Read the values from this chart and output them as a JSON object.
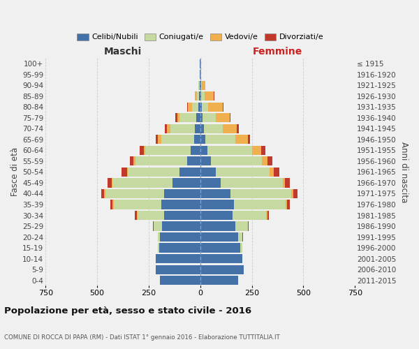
{
  "age_groups": [
    "0-4",
    "5-9",
    "10-14",
    "15-19",
    "20-24",
    "25-29",
    "30-34",
    "35-39",
    "40-44",
    "45-49",
    "50-54",
    "55-59",
    "60-64",
    "65-69",
    "70-74",
    "75-79",
    "80-84",
    "85-89",
    "90-94",
    "95-99",
    "100+"
  ],
  "birth_years": [
    "2011-2015",
    "2006-2010",
    "2001-2005",
    "1996-2000",
    "1991-1995",
    "1986-1990",
    "1981-1985",
    "1976-1980",
    "1971-1975",
    "1966-1970",
    "1961-1965",
    "1956-1960",
    "1951-1955",
    "1946-1950",
    "1941-1945",
    "1936-1940",
    "1931-1935",
    "1926-1930",
    "1921-1925",
    "1916-1920",
    "≤ 1915"
  ],
  "male": {
    "celibi": [
      195,
      215,
      215,
      200,
      195,
      185,
      175,
      190,
      175,
      135,
      100,
      65,
      45,
      30,
      25,
      20,
      10,
      5,
      3,
      2,
      2
    ],
    "coniugati": [
      0,
      0,
      0,
      5,
      10,
      40,
      130,
      230,
      285,
      290,
      250,
      250,
      220,
      160,
      120,
      80,
      30,
      10,
      5,
      0,
      0
    ],
    "vedovi": [
      0,
      0,
      0,
      0,
      0,
      0,
      3,
      5,
      5,
      5,
      5,
      10,
      10,
      15,
      15,
      10,
      20,
      10,
      2,
      0,
      0
    ],
    "divorziati": [
      0,
      0,
      0,
      0,
      2,
      3,
      8,
      10,
      15,
      20,
      25,
      15,
      20,
      12,
      12,
      10,
      5,
      2,
      0,
      0,
      0
    ]
  },
  "female": {
    "nubili": [
      185,
      210,
      205,
      195,
      185,
      170,
      155,
      165,
      145,
      100,
      75,
      50,
      35,
      25,
      18,
      12,
      8,
      5,
      3,
      2,
      2
    ],
    "coniugate": [
      0,
      0,
      0,
      8,
      20,
      60,
      165,
      250,
      295,
      300,
      260,
      250,
      215,
      145,
      90,
      65,
      30,
      15,
      5,
      0,
      0
    ],
    "vedove": [
      0,
      0,
      0,
      0,
      0,
      0,
      5,
      5,
      10,
      10,
      20,
      25,
      45,
      60,
      70,
      65,
      70,
      45,
      15,
      3,
      2
    ],
    "divorziate": [
      0,
      0,
      0,
      0,
      2,
      3,
      8,
      15,
      20,
      25,
      30,
      25,
      20,
      10,
      8,
      5,
      5,
      2,
      0,
      0,
      0
    ]
  },
  "colors": {
    "celibi": "#4472a8",
    "coniugati": "#c5d9a0",
    "vedovi": "#f0b050",
    "divorziati": "#c0392b"
  },
  "title": "Popolazione per età, sesso e stato civile - 2016",
  "subtitle": "COMUNE DI ROCCA DI PAPA (RM) - Dati ISTAT 1° gennaio 2016 - Elaborazione TUTTITALIA.IT",
  "xlabel_left": "Maschi",
  "xlabel_right": "Femmine",
  "ylabel_left": "Fasce di età",
  "ylabel_right": "Anni di nascita",
  "xlim": 750,
  "bg_color": "#f0f0f0",
  "grid_color": "#cccccc",
  "legend_labels": [
    "Celibi/Nubili",
    "Coniugati/e",
    "Vedovi/e",
    "Divorziati/e"
  ]
}
